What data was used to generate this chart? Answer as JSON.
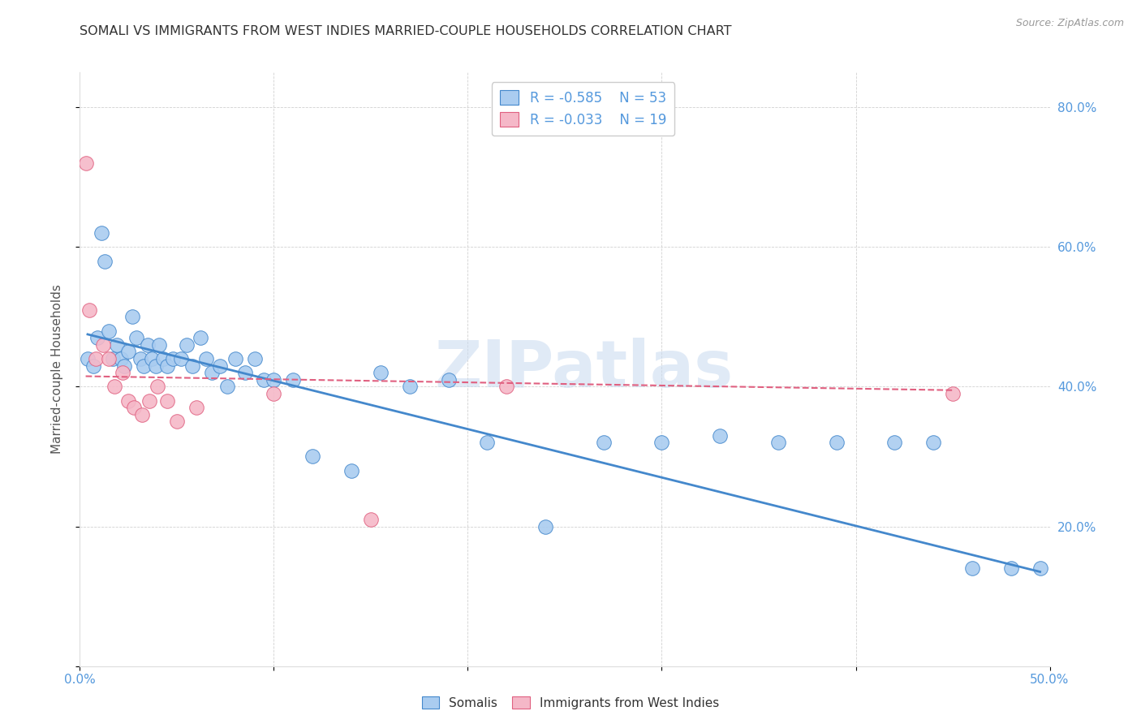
{
  "title": "SOMALI VS IMMIGRANTS FROM WEST INDIES MARRIED-COUPLE HOUSEHOLDS CORRELATION CHART",
  "source": "Source: ZipAtlas.com",
  "ylabel": "Married-couple Households",
  "watermark": "ZIPatlas",
  "xlim": [
    0.0,
    0.5
  ],
  "ylim": [
    0.0,
    0.85
  ],
  "xticks": [
    0.0,
    0.1,
    0.2,
    0.3,
    0.4,
    0.5
  ],
  "xticklabels": [
    "0.0%",
    "",
    "",
    "",
    "",
    "50.0%"
  ],
  "yticks": [
    0.0,
    0.2,
    0.4,
    0.6,
    0.8
  ],
  "yticklabels_right": [
    "",
    "20.0%",
    "40.0%",
    "60.0%",
    "80.0%"
  ],
  "legend_r1": "-0.585",
  "legend_n1": "53",
  "legend_r2": "-0.033",
  "legend_n2": "19",
  "somali_color": "#aaccf0",
  "wi_color": "#f5b8c8",
  "trendline1_color": "#4488cc",
  "trendline2_color": "#e06080",
  "somali_x": [
    0.004,
    0.007,
    0.009,
    0.011,
    0.013,
    0.015,
    0.017,
    0.019,
    0.021,
    0.023,
    0.025,
    0.027,
    0.029,
    0.031,
    0.033,
    0.035,
    0.037,
    0.039,
    0.041,
    0.043,
    0.045,
    0.048,
    0.052,
    0.055,
    0.058,
    0.062,
    0.065,
    0.068,
    0.072,
    0.076,
    0.08,
    0.085,
    0.09,
    0.095,
    0.1,
    0.11,
    0.12,
    0.14,
    0.155,
    0.17,
    0.19,
    0.21,
    0.24,
    0.27,
    0.3,
    0.33,
    0.36,
    0.39,
    0.42,
    0.44,
    0.46,
    0.48,
    0.495
  ],
  "somali_y": [
    0.44,
    0.43,
    0.47,
    0.62,
    0.58,
    0.48,
    0.44,
    0.46,
    0.44,
    0.43,
    0.45,
    0.5,
    0.47,
    0.44,
    0.43,
    0.46,
    0.44,
    0.43,
    0.46,
    0.44,
    0.43,
    0.44,
    0.44,
    0.46,
    0.43,
    0.47,
    0.44,
    0.42,
    0.43,
    0.4,
    0.44,
    0.42,
    0.44,
    0.41,
    0.41,
    0.41,
    0.3,
    0.28,
    0.42,
    0.4,
    0.41,
    0.32,
    0.2,
    0.32,
    0.32,
    0.33,
    0.32,
    0.32,
    0.32,
    0.32,
    0.14,
    0.14,
    0.14
  ],
  "wi_x": [
    0.003,
    0.005,
    0.008,
    0.012,
    0.015,
    0.018,
    0.022,
    0.025,
    0.028,
    0.032,
    0.036,
    0.04,
    0.045,
    0.05,
    0.06,
    0.1,
    0.15,
    0.22,
    0.45
  ],
  "wi_y": [
    0.72,
    0.51,
    0.44,
    0.46,
    0.44,
    0.4,
    0.42,
    0.38,
    0.37,
    0.36,
    0.38,
    0.4,
    0.38,
    0.35,
    0.37,
    0.39,
    0.21,
    0.4,
    0.39
  ],
  "trendline1_x": [
    0.004,
    0.495
  ],
  "trendline1_y": [
    0.475,
    0.135
  ],
  "trendline2_x": [
    0.003,
    0.45
  ],
  "trendline2_y": [
    0.415,
    0.395
  ],
  "grid_color": "#cccccc",
  "background_color": "#ffffff",
  "title_color": "#333333",
  "title_fontsize": 11.5,
  "source_color": "#999999",
  "tick_color": "#5599dd",
  "ylabel_color": "#555555"
}
